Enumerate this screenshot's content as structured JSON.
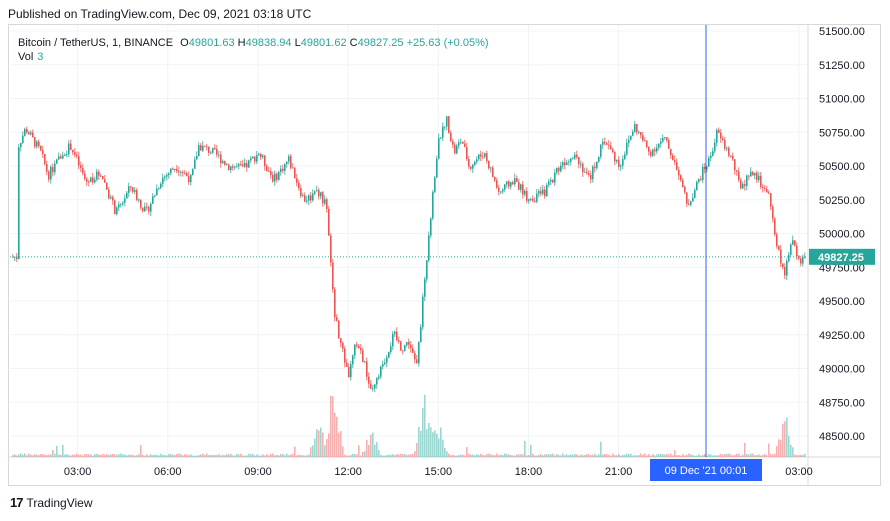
{
  "published": "Published on TradingView.com, Dec 09, 2021 03:18 UTC",
  "legend": {
    "symbol": "Bitcoin / TetherUS, 1, BINANCE",
    "o_label": "O",
    "o": "49801.63",
    "h_label": "H",
    "h": "49838.94",
    "l_label": "L",
    "l": "49801.62",
    "c_label": "C",
    "c": "49827.25",
    "change": "+25.63 (+0.05%)",
    "vol_label": "Vol",
    "vol": "3"
  },
  "footer": {
    "brand": "TradingView",
    "logo": "17"
  },
  "colors": {
    "up": "#26a69a",
    "down": "#ef5350",
    "crosshair": "#2962ff",
    "price_tag": "#26a69a"
  },
  "chart_data": {
    "type": "candlestick",
    "symbol": "Bitcoin / TetherUS",
    "interval": "1",
    "exchange": "BINANCE",
    "ylim": [
      48350,
      51500
    ],
    "y_ticks": [
      "51500.00",
      "51250.00",
      "51000.00",
      "50750.00",
      "50500.00",
      "50250.00",
      "50000.00",
      "49750.00",
      "49500.00",
      "49250.00",
      "49000.00",
      "48750.00",
      "48500.00"
    ],
    "x_ticks": [
      "03:00",
      "06:00",
      "09:00",
      "12:00",
      "15:00",
      "18:00",
      "21:00",
      "03:00"
    ],
    "last_price": "49827.25",
    "crosshair_label": "09 Dec '21   00:01",
    "price_path": [
      {
        "t": "01:00",
        "p": 50650
      },
      {
        "t": "01:15",
        "p": 50780
      },
      {
        "t": "01:45",
        "p": 50600
      },
      {
        "t": "02:00",
        "p": 50430
      },
      {
        "t": "02:30",
        "p": 50600
      },
      {
        "t": "02:45",
        "p": 50650
      },
      {
        "t": "03:15",
        "p": 50380
      },
      {
        "t": "03:45",
        "p": 50450
      },
      {
        "t": "04:15",
        "p": 50150
      },
      {
        "t": "04:45",
        "p": 50350
      },
      {
        "t": "05:15",
        "p": 50150
      },
      {
        "t": "05:45",
        "p": 50400
      },
      {
        "t": "06:15",
        "p": 50500
      },
      {
        "t": "06:45",
        "p": 50400
      },
      {
        "t": "07:00",
        "p": 50650
      },
      {
        "t": "07:30",
        "p": 50600
      },
      {
        "t": "08:00",
        "p": 50500
      },
      {
        "t": "08:30",
        "p": 50480
      },
      {
        "t": "09:00",
        "p": 50600
      },
      {
        "t": "09:30",
        "p": 50400
      },
      {
        "t": "10:00",
        "p": 50550
      },
      {
        "t": "10:30",
        "p": 50250
      },
      {
        "t": "11:00",
        "p": 50300
      },
      {
        "t": "11:15",
        "p": 50200
      },
      {
        "t": "11:30",
        "p": 49450
      },
      {
        "t": "11:45",
        "p": 49150
      },
      {
        "t": "12:00",
        "p": 48950
      },
      {
        "t": "12:15",
        "p": 49200
      },
      {
        "t": "12:30",
        "p": 49050
      },
      {
        "t": "12:45",
        "p": 48800
      },
      {
        "t": "13:00",
        "p": 48950
      },
      {
        "t": "13:15",
        "p": 49100
      },
      {
        "t": "13:30",
        "p": 49250
      },
      {
        "t": "13:45",
        "p": 49150
      },
      {
        "t": "14:00",
        "p": 49200
      },
      {
        "t": "14:15",
        "p": 49000
      },
      {
        "t": "14:30",
        "p": 49600
      },
      {
        "t": "14:45",
        "p": 50200
      },
      {
        "t": "15:00",
        "p": 50700
      },
      {
        "t": "15:15",
        "p": 50850
      },
      {
        "t": "15:30",
        "p": 50600
      },
      {
        "t": "15:45",
        "p": 50700
      },
      {
        "t": "16:00",
        "p": 50500
      },
      {
        "t": "16:30",
        "p": 50600
      },
      {
        "t": "17:00",
        "p": 50300
      },
      {
        "t": "17:30",
        "p": 50400
      },
      {
        "t": "18:00",
        "p": 50250
      },
      {
        "t": "18:30",
        "p": 50300
      },
      {
        "t": "19:00",
        "p": 50500
      },
      {
        "t": "19:30",
        "p": 50600
      },
      {
        "t": "20:00",
        "p": 50400
      },
      {
        "t": "20:30",
        "p": 50700
      },
      {
        "t": "21:00",
        "p": 50500
      },
      {
        "t": "21:30",
        "p": 50800
      },
      {
        "t": "22:00",
        "p": 50600
      },
      {
        "t": "22:30",
        "p": 50700
      },
      {
        "t": "23:00",
        "p": 50450
      },
      {
        "t": "23:15",
        "p": 50200
      },
      {
        "t": "23:45",
        "p": 50450
      },
      {
        "t": "00:00",
        "p": 50550
      },
      {
        "t": "00:15",
        "p": 50750
      },
      {
        "t": "00:45",
        "p": 50550
      },
      {
        "t": "01:00",
        "p": 50350
      },
      {
        "t": "01:30",
        "p": 50450
      },
      {
        "t": "02:00",
        "p": 50250
      },
      {
        "t": "02:15",
        "p": 49900
      },
      {
        "t": "02:30",
        "p": 49700
      },
      {
        "t": "02:45",
        "p": 49950
      },
      {
        "t": "03:00",
        "p": 49800
      },
      {
        "t": "03:18",
        "p": 49827.25
      }
    ],
    "volume_spikes": [
      {
        "t": "11:00",
        "v": 0.5
      },
      {
        "t": "11:30",
        "v": 1.0
      },
      {
        "t": "12:45",
        "v": 0.35
      },
      {
        "t": "14:30",
        "v": 0.75
      },
      {
        "t": "14:45",
        "v": 0.6
      },
      {
        "t": "15:00",
        "v": 0.4
      },
      {
        "t": "02:30",
        "v": 0.6
      }
    ]
  }
}
